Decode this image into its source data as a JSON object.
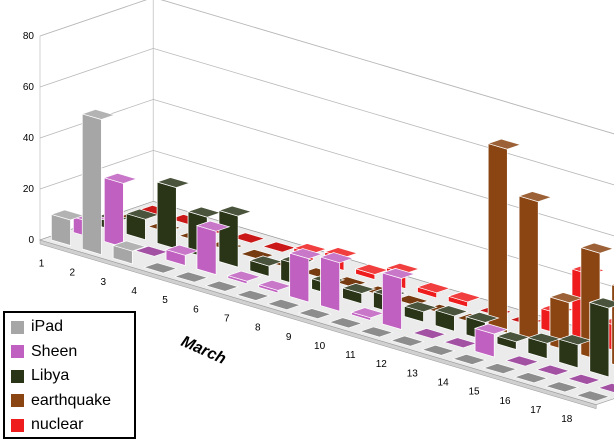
{
  "chart_data": {
    "type": "bar",
    "subtype": "3d-column-stacked-depth",
    "title": "",
    "xlabel": "March",
    "ylabel": "",
    "ylim": [
      0,
      80
    ],
    "yticks": [
      0,
      20,
      40,
      60,
      80
    ],
    "grid": true,
    "legend_position": "bottom-left",
    "categories": [
      "1",
      "2",
      "3",
      "4",
      "5",
      "6",
      "7",
      "8",
      "9",
      "10",
      "11",
      "12",
      "13",
      "14",
      "15",
      "16",
      "17",
      "18"
    ],
    "series": [
      {
        "name": "iPad",
        "color": "#a6a6a6",
        "values": [
          10,
          53,
          5,
          0,
          0,
          0,
          0,
          0,
          0,
          0,
          0,
          0,
          0,
          0,
          0,
          0,
          0,
          0
        ]
      },
      {
        "name": "Sheen",
        "color": "#c060c0",
        "values": [
          6,
          25,
          0,
          4,
          17,
          1,
          1,
          17,
          19,
          1,
          20,
          0,
          0,
          9,
          0,
          0,
          0,
          0
        ]
      },
      {
        "name": "Libya",
        "color": "#2a3518",
        "values": [
          3,
          8,
          24,
          16,
          20,
          4,
          8,
          4,
          4,
          6,
          4,
          6,
          7,
          3,
          6,
          9,
          27,
          40
        ]
      },
      {
        "name": "earthquake",
        "color": "#8b4513",
        "values": [
          0,
          0,
          0,
          0,
          0,
          0,
          0,
          0,
          0,
          0,
          0,
          0,
          72,
          55,
          19,
          42,
          31,
          28
        ]
      },
      {
        "name": "nuclear",
        "color": "#ee1c1c",
        "values": [
          0,
          0,
          0,
          0,
          0,
          3,
          5,
          2,
          6,
          2,
          2,
          0,
          0,
          8,
          27,
          10,
          49,
          24
        ]
      }
    ]
  }
}
